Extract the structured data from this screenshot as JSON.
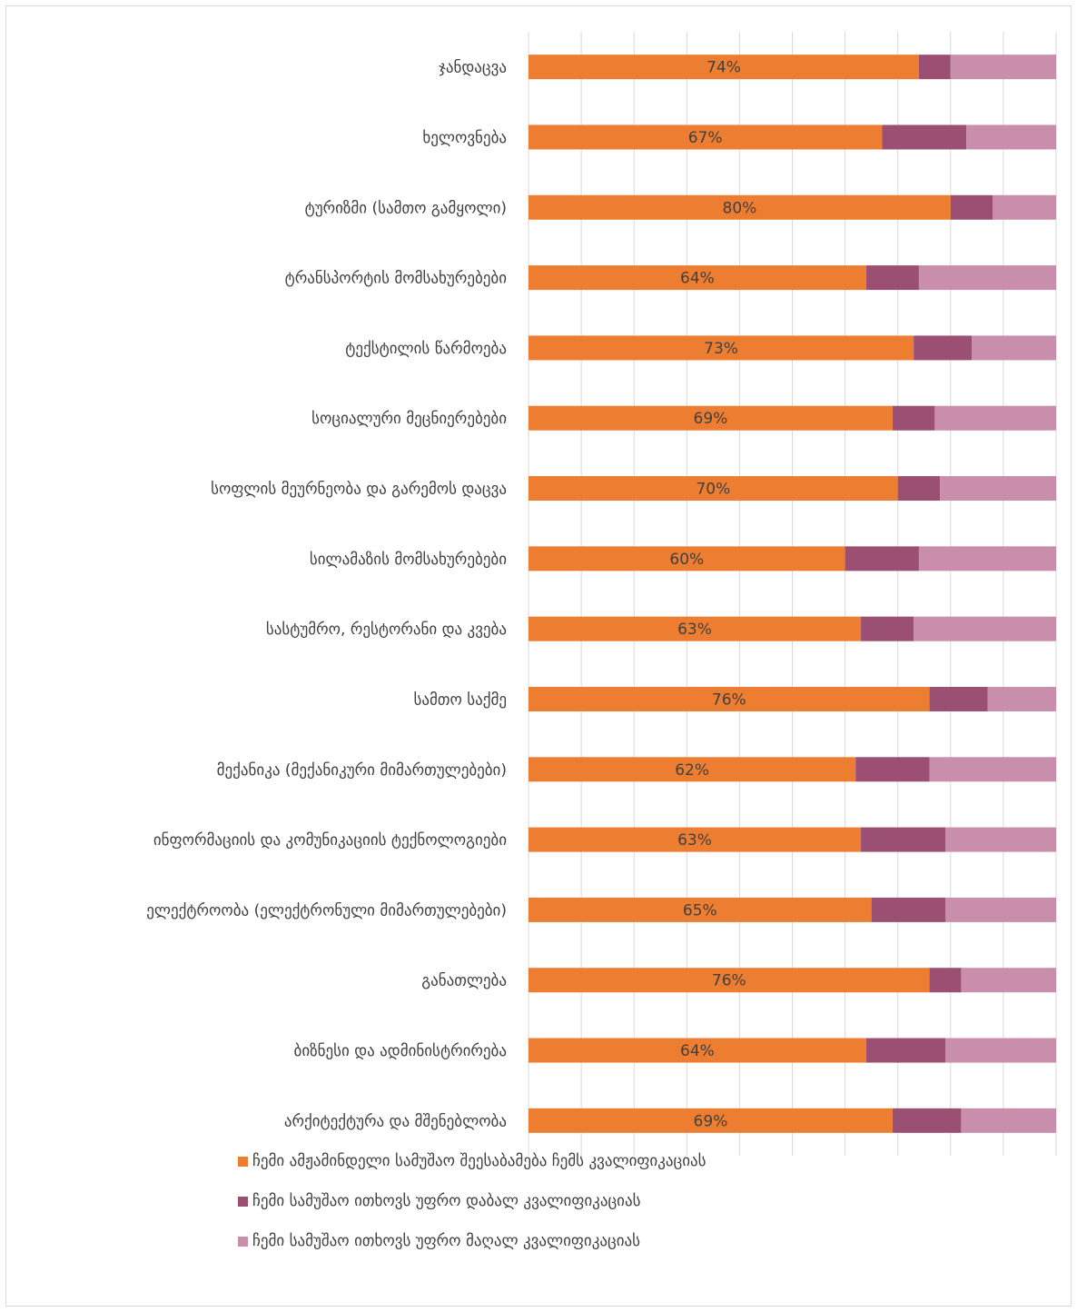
{
  "chart_data": {
    "type": "bar",
    "orientation": "horizontal",
    "stacked": "100%",
    "title": "",
    "xlim": [
      0,
      100
    ],
    "grid": true,
    "legend_position": "bottom",
    "categories": [
      "ჯანდაცვა",
      "ხელოვნება",
      "ტურიზმი (სამთო გამყოლი)",
      "ტრანსპორტის მომსახურებები",
      "ტექსტილის წარმოება",
      "სოციალური მეცნიერებები",
      "სოფლის მეურნეობა და გარემოს დაცვა",
      "სილამაზის მომსახურებები",
      "სასტუმრო, რესტორანი და კვება",
      "სამთო საქმე",
      "მექანიკა (მექანიკური მიმართულებები)",
      "ინფორმაციის და კომუნიკაციის ტექნოლოგიები",
      "ელექტროობა (ელექტრონული მიმართულებები)",
      "განათლება",
      "ბიზნესი და ადმინისტრირება",
      "არქიტექტურა და მშენებლობა"
    ],
    "series": [
      {
        "name": "ჩემი ამჟამინდელი სამუშაო შეესაბამება ჩემს კვალიფიკაციას",
        "color": "#ED7D31",
        "values": [
          74,
          67,
          80,
          64,
          73,
          69,
          70,
          60,
          63,
          76,
          62,
          63,
          65,
          76,
          64,
          69
        ],
        "labels": [
          "74%",
          "67%",
          "80%",
          "64%",
          "73%",
          "69%",
          "70%",
          "60%",
          "63%",
          "76%",
          "62%",
          "63%",
          "65%",
          "76%",
          "64%",
          "69%"
        ]
      },
      {
        "name": "ჩემი სამუშაო ითხოვს უფრო დაბალ კვალიფიკაციას",
        "color": "#9B4F72",
        "values": [
          6,
          16,
          8,
          10,
          11,
          8,
          8,
          14,
          10,
          11,
          14,
          16,
          14,
          6,
          15,
          13
        ]
      },
      {
        "name": "ჩემი სამუშაო ითხოვს უფრო მაღალ კვალიფიკაციას",
        "color": "#C88EAB",
        "values": [
          20,
          17,
          12,
          26,
          16,
          23,
          22,
          26,
          27,
          13,
          24,
          21,
          21,
          18,
          21,
          18
        ]
      }
    ]
  }
}
